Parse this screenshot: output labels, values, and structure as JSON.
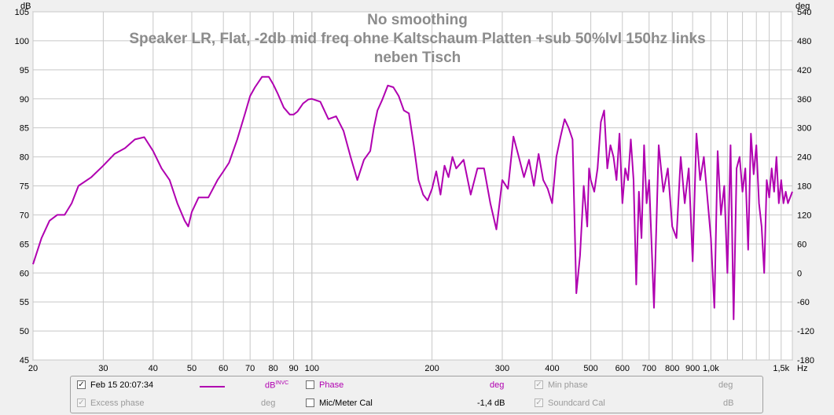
{
  "title": {
    "line1": "No smoothing",
    "line2": "Speaker LR, Flat, -2db mid freq ohne Kaltschaum Platten +sub 50%lvl 150hz links",
    "line3": "neben Tisch"
  },
  "axes": {
    "y_left_unit": "dB",
    "y_right_unit": "deg",
    "x_unit": "Hz"
  },
  "colors": {
    "trace": "#b000b0",
    "grid": "#c8c8c8",
    "plot_bg": "#ffffff",
    "title": "#8c8c8c"
  },
  "legend": {
    "measurement_label": "Feb 15 20:07:34",
    "measurement_checked": "✓",
    "measurement_unit": "dB",
    "measurement_unit_sup": "INVC",
    "phase_label": "Phase",
    "phase_unit": "deg",
    "min_phase_label": "Min phase",
    "min_phase_checked": "✓",
    "min_phase_unit": "deg",
    "excess_phase_label": "Excess phase",
    "excess_phase_checked": "✓",
    "excess_phase_unit": "deg",
    "mic_cal_label": "Mic/Meter Cal",
    "mic_cal_value": "-1,4 dB",
    "soundcard_cal_label": "Soundcard Cal",
    "soundcard_cal_checked": "✓",
    "soundcard_cal_unit": "dB"
  },
  "chart_data": {
    "type": "line",
    "title": "No smoothing Speaker LR, Flat, -2db mid freq ohne Kaltschaum Platten +sub 50%lvl 150hz links neben Tisch",
    "x_scale": "log",
    "xlim": [
      20,
      1600
    ],
    "ylim": [
      45,
      105
    ],
    "y2lim": [
      -180,
      540
    ],
    "xlabel": "Hz",
    "ylabel": "dB",
    "y2label": "deg",
    "grid": true,
    "legend_position": "bottom",
    "x_ticks": [
      {
        "v": 20,
        "label": "20"
      },
      {
        "v": 30,
        "label": "30"
      },
      {
        "v": 40,
        "label": "40"
      },
      {
        "v": 50,
        "label": "50"
      },
      {
        "v": 60,
        "label": "60"
      },
      {
        "v": 70,
        "label": "70"
      },
      {
        "v": 80,
        "label": "80"
      },
      {
        "v": 90,
        "label": "90"
      },
      {
        "v": 100,
        "label": "100"
      },
      {
        "v": 200,
        "label": "200"
      },
      {
        "v": 300,
        "label": "300"
      },
      {
        "v": 400,
        "label": "400"
      },
      {
        "v": 500,
        "label": "500"
      },
      {
        "v": 600,
        "label": "600"
      },
      {
        "v": 700,
        "label": "700"
      },
      {
        "v": 800,
        "label": "800"
      },
      {
        "v": 900,
        "label": "900"
      },
      {
        "v": 1000,
        "label": "1,0k"
      },
      {
        "v": 1500,
        "label": "1,5k"
      }
    ],
    "y_ticks": [
      105,
      100,
      95,
      90,
      85,
      80,
      75,
      70,
      65,
      60,
      55,
      50,
      45
    ],
    "y2_ticks": [
      540,
      480,
      420,
      360,
      300,
      240,
      180,
      120,
      60,
      0,
      -60,
      -120,
      -180
    ],
    "series": [
      {
        "name": "Feb 15 20:07:34",
        "x": [
          20,
          21,
          22,
          23,
          24,
          25,
          26,
          28,
          30,
          32,
          34,
          36,
          38,
          40,
          42,
          44,
          46,
          48,
          49,
          50,
          52,
          55,
          58,
          60,
          62,
          65,
          68,
          70,
          72,
          75,
          78,
          80,
          82,
          85,
          88,
          90,
          92,
          95,
          98,
          100,
          105,
          110,
          115,
          120,
          125,
          130,
          135,
          140,
          143,
          146,
          150,
          155,
          160,
          165,
          170,
          175,
          180,
          185,
          190,
          195,
          200,
          205,
          210,
          215,
          220,
          225,
          230,
          240,
          250,
          260,
          270,
          280,
          290,
          300,
          310,
          320,
          330,
          340,
          350,
          360,
          370,
          380,
          390,
          400,
          410,
          420,
          430,
          440,
          450,
          460,
          470,
          480,
          490,
          495,
          500,
          510,
          520,
          530,
          540,
          550,
          560,
          570,
          580,
          590,
          600,
          610,
          620,
          630,
          640,
          650,
          660,
          670,
          680,
          690,
          700,
          720,
          740,
          760,
          780,
          800,
          820,
          840,
          860,
          880,
          900,
          920,
          940,
          960,
          980,
          1000,
          1020,
          1040,
          1060,
          1080,
          1100,
          1120,
          1140,
          1160,
          1180,
          1200,
          1220,
          1240,
          1260,
          1280,
          1300,
          1320,
          1340,
          1360,
          1380,
          1400,
          1420,
          1440,
          1460,
          1480,
          1500,
          1520,
          1540,
          1560,
          1580,
          1600
        ],
        "y": [
          61.5,
          66,
          69,
          70,
          70,
          72,
          75,
          76.5,
          78.5,
          80.5,
          81.5,
          83,
          83.4,
          81,
          78,
          76,
          72,
          69,
          68,
          70.5,
          73,
          73,
          76,
          77.5,
          79,
          83,
          87.5,
          90.5,
          92,
          93.8,
          93.8,
          92.5,
          91,
          88.5,
          87.3,
          87.3,
          87.8,
          89.2,
          89.9,
          90,
          89.5,
          86.5,
          87,
          84.5,
          80,
          76,
          79.5,
          81,
          85,
          88,
          89.8,
          92.3,
          92,
          90.5,
          88,
          87.5,
          82,
          76,
          73.5,
          72.5,
          74.5,
          77.5,
          73.5,
          78.5,
          76.5,
          80,
          78,
          79.5,
          73.5,
          78,
          78,
          72,
          67.5,
          76,
          74.5,
          83.5,
          80,
          76.5,
          79.5,
          75,
          80.5,
          76,
          74.5,
          72,
          80,
          83.5,
          86.5,
          85,
          83,
          56.5,
          63,
          75,
          68,
          78,
          76,
          74,
          78,
          86,
          88,
          78,
          82,
          80,
          76,
          84,
          72,
          78,
          76,
          83,
          76,
          58,
          74,
          66,
          82,
          72,
          76,
          54,
          82,
          74,
          78,
          68,
          66,
          80,
          72,
          78,
          62,
          84,
          76,
          80,
          73,
          66,
          54,
          81,
          70,
          75,
          60,
          82,
          52,
          78,
          80,
          74,
          78,
          64,
          84,
          77,
          82,
          72,
          68,
          60,
          76,
          73,
          78,
          74,
          80,
          72,
          76,
          72,
          74,
          72,
          73,
          74
        ]
      }
    ]
  }
}
